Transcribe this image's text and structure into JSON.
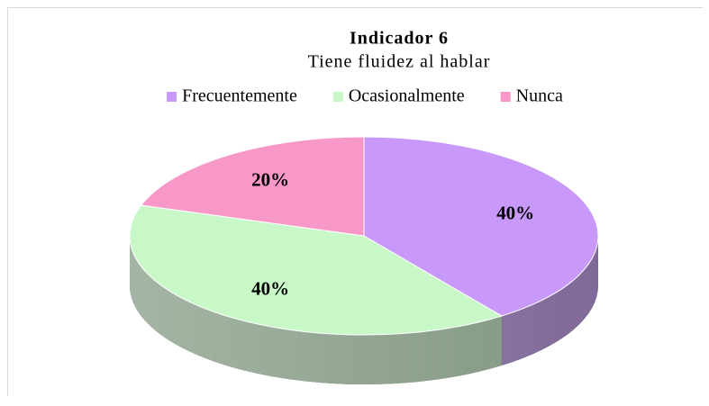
{
  "chart_data": {
    "type": "pie",
    "title": "Indicador 6",
    "subtitle": "Tiene fluidez al hablar",
    "categories": [
      "Frecuentemente",
      "Ocasionalmente",
      "Nunca"
    ],
    "values": [
      40,
      40,
      20
    ],
    "value_labels": [
      "40%",
      "40%",
      "20%"
    ],
    "colors": [
      "#c898fa",
      "#c8f8c8",
      "#f898c8"
    ],
    "legend": "top"
  }
}
